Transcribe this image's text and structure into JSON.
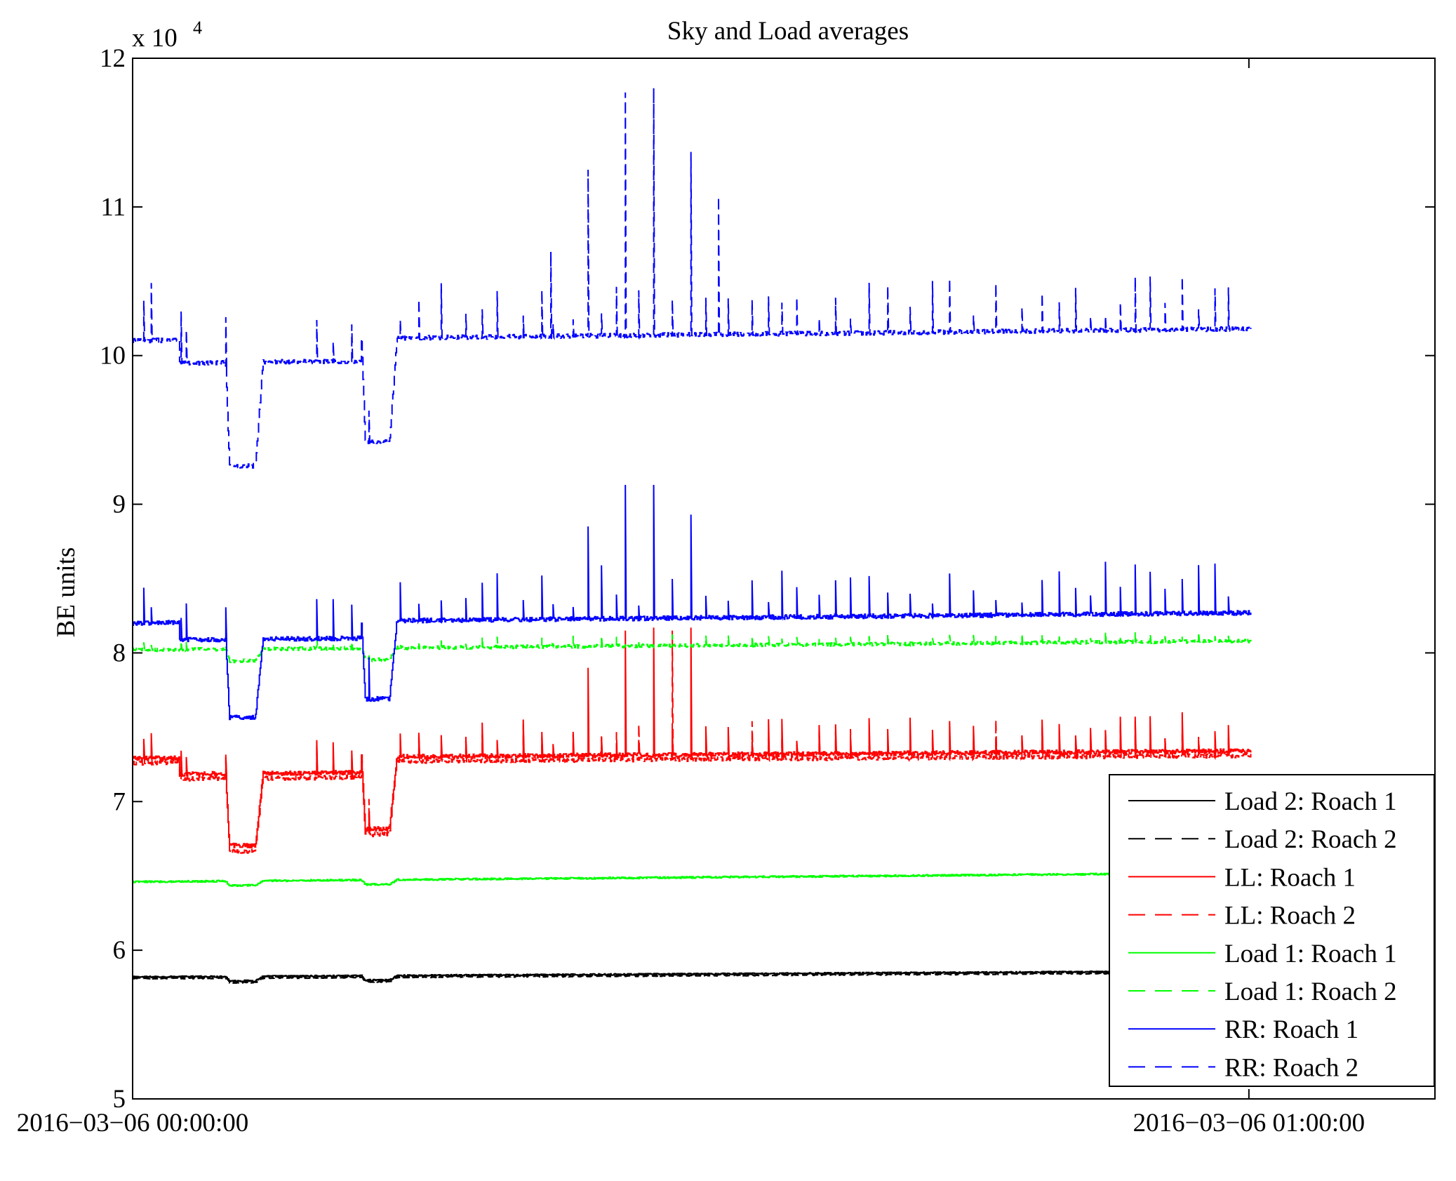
{
  "chart_data": {
    "type": "line",
    "title": "Sky and Load averages",
    "ylabel": "BE units",
    "xlabel": "",
    "y_multiplier_label": "x 10",
    "y_multiplier_exponent": "4",
    "ylim": [
      50000,
      120000
    ],
    "yticks": [
      50000,
      60000,
      70000,
      80000,
      90000,
      100000,
      110000,
      120000
    ],
    "ytick_labels": [
      "5",
      "6",
      "7",
      "8",
      "9",
      "10",
      "11",
      "12"
    ],
    "xlim": [
      "2016-03-06 00:00:00",
      "2016-03-06 01:10:00"
    ],
    "xticks": [
      "2016-03-06 00:00:00",
      "2016-03-06 01:00:00"
    ],
    "xtick_labels": [
      "2016−03−06 00:00:00",
      "2016−03−06 01:00:00"
    ],
    "grid": false,
    "legend_position": "lower-right",
    "series": [
      {
        "name": "Load 2: Roach 1",
        "color": "#000000",
        "dash": "solid",
        "base": 58200,
        "trend": 400,
        "noise": 50,
        "dip_depth": 300,
        "spike_scale": 0,
        "extra_spikes": []
      },
      {
        "name": "Load 2: Roach 2",
        "color": "#000000",
        "dash": "dashed",
        "base": 58100,
        "trend": 400,
        "noise": 50,
        "dip_depth": 300,
        "spike_scale": 0,
        "extra_spikes": []
      },
      {
        "name": "LL: Roach 1",
        "color": "#ff0000",
        "dash": "solid",
        "base": 72900,
        "trend": 500,
        "noise": 150,
        "dip_depth": 5900,
        "spike_scale": 1,
        "extra_spikes": [
          {
            "minute": 24.5,
            "value": 79000
          },
          {
            "minute": 26.5,
            "value": 81500
          },
          {
            "minute": 28.0,
            "value": 81700
          },
          {
            "minute": 30.0,
            "value": 81700
          }
        ]
      },
      {
        "name": "LL: Roach 2",
        "color": "#ff0000",
        "dash": "dashed",
        "base": 72600,
        "trend": 500,
        "noise": 150,
        "dip_depth": 6000,
        "spike_scale": 1,
        "extra_spikes": [
          {
            "minute": 29.0,
            "value": 81500
          }
        ]
      },
      {
        "name": "Load 1: Roach 1",
        "color": "#00ff00",
        "dash": "solid",
        "base": 64600,
        "trend": 600,
        "noise": 60,
        "dip_depth": 300,
        "spike_scale": 0,
        "extra_spikes": []
      },
      {
        "name": "Load 1: Roach 2",
        "color": "#00ff00",
        "dash": "dashed",
        "base": 80200,
        "trend": 600,
        "noise": 120,
        "dip_depth": 800,
        "spike_scale": 0.3,
        "extra_spikes": []
      },
      {
        "name": "RR: Roach 1",
        "color": "#0000ff",
        "dash": "solid",
        "base": 82000,
        "trend": 700,
        "noise": 150,
        "dip_depth": 6400,
        "spike_scale": 1.4,
        "extra_spikes": [
          {
            "minute": 24.5,
            "value": 88500
          },
          {
            "minute": 26.5,
            "value": 91300
          },
          {
            "minute": 28.0,
            "value": 91300
          },
          {
            "minute": 30.0,
            "value": 89300
          }
        ]
      },
      {
        "name": "RR: Roach 2",
        "color": "#0000ff",
        "dash": "dashed",
        "base": 101000,
        "trend": 800,
        "noise": 150,
        "dip_depth": 8500,
        "spike_scale": 1.5,
        "extra_spikes": [
          {
            "minute": 24.5,
            "value": 112500
          },
          {
            "minute": 26.5,
            "value": 117700
          },
          {
            "minute": 28.0,
            "value": 118000
          },
          {
            "minute": 30.0,
            "value": 113700
          },
          {
            "minute": 31.5,
            "value": 110700
          },
          {
            "minute": 22.5,
            "value": 107000
          }
        ]
      }
    ],
    "dips": [
      {
        "start_min": 5.0,
        "end_min": 7.0,
        "drop_min": 5.2,
        "rise_min": 6.6
      },
      {
        "start_min": 12.3,
        "end_min": 14.2,
        "drop_min": 12.5,
        "rise_min": 13.8
      }
    ]
  }
}
